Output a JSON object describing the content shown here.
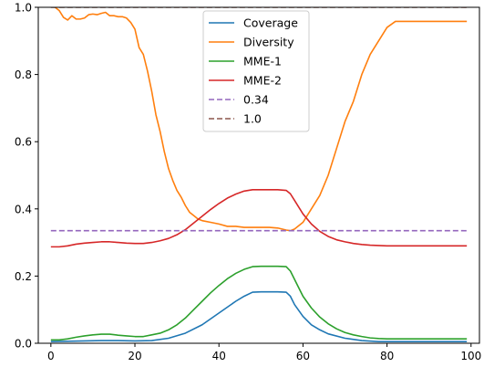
{
  "chart_data": {
    "type": "line",
    "title": "",
    "xlabel": "",
    "ylabel": "",
    "xlim": [
      -3,
      102
    ],
    "ylim": [
      0,
      1
    ],
    "xticks": [
      0,
      20,
      40,
      60,
      80,
      100
    ],
    "yticks": [
      0.0,
      0.2,
      0.4,
      0.6,
      0.8,
      1.0
    ],
    "xtick_labels": [
      "0",
      "20",
      "40",
      "60",
      "80",
      "100"
    ],
    "ytick_labels": [
      "0.0",
      "0.2",
      "0.4",
      "0.6",
      "0.8",
      "1.0"
    ],
    "grid": false,
    "legend_position": "top-center",
    "series": [
      {
        "name": "Coverage",
        "color": "#1f77b4",
        "style": "solid",
        "x": [
          0,
          4,
          8,
          12,
          16,
          20,
          24,
          28,
          32,
          36,
          40,
          44,
          46,
          48,
          50,
          52,
          54,
          56,
          57,
          58,
          60,
          62,
          64,
          66,
          70,
          74,
          78,
          80,
          90,
          99
        ],
        "y": [
          0.005,
          0.006,
          0.007,
          0.008,
          0.008,
          0.007,
          0.008,
          0.015,
          0.03,
          0.055,
          0.09,
          0.125,
          0.14,
          0.152,
          0.153,
          0.153,
          0.153,
          0.152,
          0.14,
          0.115,
          0.08,
          0.055,
          0.04,
          0.028,
          0.015,
          0.008,
          0.005,
          0.005,
          0.005,
          0.005
        ]
      },
      {
        "name": "Diversity",
        "color": "#ff7f0e",
        "style": "solid",
        "x": [
          1,
          2,
          3,
          4,
          5,
          6,
          7,
          8,
          9,
          10,
          11,
          12,
          13,
          14,
          15,
          16,
          17,
          18,
          19,
          20,
          21,
          22,
          23,
          24,
          25,
          26,
          27,
          28,
          29,
          30,
          31,
          32,
          33,
          34,
          35,
          36,
          38,
          40,
          42,
          44,
          46,
          48,
          50,
          52,
          54,
          56,
          57,
          58,
          60,
          62,
          64,
          66,
          68,
          70,
          72,
          74,
          76,
          78,
          79,
          80,
          82,
          90,
          99
        ],
        "y": [
          1.0,
          0.99,
          0.97,
          0.962,
          0.975,
          0.965,
          0.965,
          0.968,
          0.978,
          0.98,
          0.978,
          0.982,
          0.985,
          0.975,
          0.975,
          0.972,
          0.972,
          0.968,
          0.955,
          0.935,
          0.88,
          0.86,
          0.81,
          0.75,
          0.68,
          0.63,
          0.57,
          0.52,
          0.485,
          0.455,
          0.435,
          0.41,
          0.39,
          0.38,
          0.37,
          0.365,
          0.36,
          0.355,
          0.348,
          0.348,
          0.345,
          0.345,
          0.345,
          0.345,
          0.343,
          0.337,
          0.335,
          0.34,
          0.36,
          0.4,
          0.44,
          0.5,
          0.58,
          0.66,
          0.72,
          0.8,
          0.86,
          0.9,
          0.92,
          0.94,
          0.958,
          0.958,
          0.958
        ]
      },
      {
        "name": "MME-1",
        "color": "#2ca02c",
        "style": "solid",
        "x": [
          0,
          2,
          4,
          6,
          8,
          10,
          12,
          14,
          16,
          18,
          20,
          22,
          24,
          26,
          28,
          30,
          32,
          34,
          36,
          38,
          40,
          42,
          44,
          46,
          48,
          50,
          52,
          54,
          56,
          57,
          58,
          60,
          62,
          64,
          66,
          68,
          70,
          72,
          74,
          76,
          78,
          80,
          90,
          99
        ],
        "y": [
          0.01,
          0.01,
          0.013,
          0.018,
          0.022,
          0.025,
          0.027,
          0.027,
          0.024,
          0.022,
          0.02,
          0.02,
          0.025,
          0.03,
          0.04,
          0.055,
          0.075,
          0.1,
          0.125,
          0.15,
          0.172,
          0.192,
          0.208,
          0.22,
          0.228,
          0.229,
          0.229,
          0.229,
          0.228,
          0.215,
          0.19,
          0.14,
          0.105,
          0.078,
          0.058,
          0.043,
          0.032,
          0.025,
          0.02,
          0.016,
          0.014,
          0.013,
          0.013,
          0.013
        ]
      },
      {
        "name": "MME-2",
        "color": "#d62728",
        "style": "solid",
        "x": [
          0,
          2,
          4,
          6,
          8,
          10,
          12,
          14,
          16,
          18,
          20,
          22,
          24,
          26,
          28,
          30,
          32,
          34,
          36,
          38,
          40,
          42,
          44,
          46,
          48,
          50,
          52,
          54,
          56,
          57,
          58,
          60,
          62,
          64,
          66,
          68,
          70,
          72,
          74,
          76,
          78,
          80,
          90,
          99
        ],
        "y": [
          0.287,
          0.287,
          0.29,
          0.295,
          0.298,
          0.3,
          0.302,
          0.302,
          0.3,
          0.298,
          0.297,
          0.297,
          0.3,
          0.305,
          0.312,
          0.323,
          0.338,
          0.358,
          0.378,
          0.398,
          0.416,
          0.432,
          0.444,
          0.453,
          0.457,
          0.457,
          0.457,
          0.457,
          0.455,
          0.445,
          0.425,
          0.385,
          0.355,
          0.333,
          0.318,
          0.308,
          0.302,
          0.297,
          0.294,
          0.292,
          0.291,
          0.29,
          0.29,
          0.29
        ]
      },
      {
        "name": "0.34",
        "color": "#9467bd",
        "style": "dashed",
        "x": [
          0,
          99
        ],
        "y": [
          0.335,
          0.335
        ]
      },
      {
        "name": "1.0",
        "color": "#8c564b",
        "style": "dashed",
        "x": [
          0,
          99
        ],
        "y": [
          1.0,
          1.0
        ]
      }
    ]
  }
}
